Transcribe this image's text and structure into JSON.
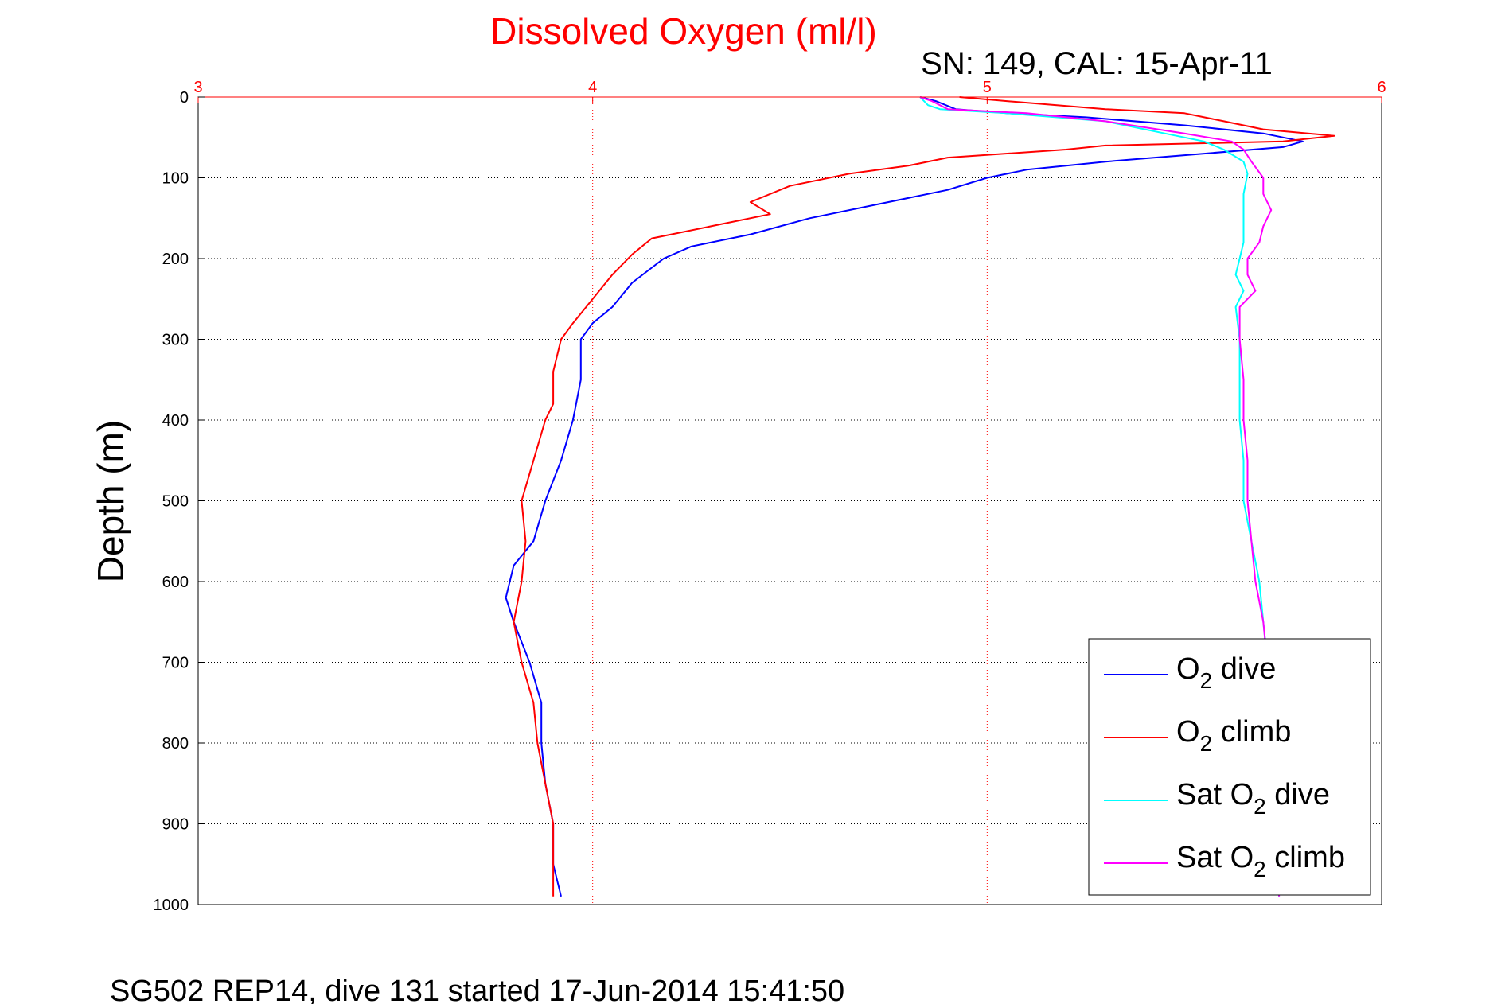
{
  "figure": {
    "title": "Dissolved Oxygen (ml/l)",
    "subtitle": "SN: 149, CAL: 15-Apr-11",
    "footer": "SG502 REP14, dive 131 started 17-Jun-2014 15:41:50"
  },
  "chart_data": {
    "type": "line",
    "title": "Dissolved Oxygen (ml/l)",
    "ylabel": "Depth (m)",
    "xlabel": "",
    "xlim": [
      3,
      6
    ],
    "ylim": [
      0,
      1000
    ],
    "y_reversed": true,
    "x_axis_position": "top",
    "xticks": [
      3,
      4,
      5,
      6
    ],
    "yticks": [
      0,
      100,
      200,
      300,
      400,
      500,
      600,
      700,
      800,
      900,
      1000
    ],
    "grid": true,
    "legend_position": "bottom-right",
    "colors": {
      "title": "#ff0000",
      "x_ticks": "#ff0000",
      "x_grid": "#ff0000",
      "y_grid": "#000000"
    },
    "series": [
      {
        "name": "O2 dive",
        "legend_main": "O",
        "legend_sub": "2",
        "legend_rest": " dive",
        "color": "#0000ff",
        "points": [
          [
            4.83,
            0
          ],
          [
            4.87,
            5
          ],
          [
            4.92,
            15
          ],
          [
            5.05,
            20
          ],
          [
            5.25,
            25
          ],
          [
            5.5,
            35
          ],
          [
            5.7,
            45
          ],
          [
            5.8,
            55
          ],
          [
            5.75,
            62
          ],
          [
            5.55,
            70
          ],
          [
            5.3,
            80
          ],
          [
            5.1,
            90
          ],
          [
            5.0,
            100
          ],
          [
            4.9,
            115
          ],
          [
            4.75,
            130
          ],
          [
            4.55,
            150
          ],
          [
            4.4,
            170
          ],
          [
            4.25,
            185
          ],
          [
            4.18,
            200
          ],
          [
            4.1,
            230
          ],
          [
            4.05,
            260
          ],
          [
            4.0,
            280
          ],
          [
            3.97,
            300
          ],
          [
            3.97,
            350
          ],
          [
            3.95,
            400
          ],
          [
            3.92,
            450
          ],
          [
            3.88,
            500
          ],
          [
            3.85,
            550
          ],
          [
            3.8,
            580
          ],
          [
            3.78,
            620
          ],
          [
            3.8,
            650
          ],
          [
            3.84,
            700
          ],
          [
            3.87,
            750
          ],
          [
            3.87,
            800
          ],
          [
            3.88,
            850
          ],
          [
            3.9,
            900
          ],
          [
            3.9,
            950
          ],
          [
            3.92,
            990
          ]
        ]
      },
      {
        "name": "O2 climb",
        "legend_main": "O",
        "legend_sub": "2",
        "legend_rest": " climb",
        "color": "#ff0000",
        "points": [
          [
            4.93,
            0
          ],
          [
            5.05,
            5
          ],
          [
            5.3,
            15
          ],
          [
            5.5,
            20
          ],
          [
            5.6,
            30
          ],
          [
            5.7,
            40
          ],
          [
            5.88,
            48
          ],
          [
            5.75,
            55
          ],
          [
            5.3,
            60
          ],
          [
            5.2,
            65
          ],
          [
            4.9,
            75
          ],
          [
            4.8,
            85
          ],
          [
            4.65,
            95
          ],
          [
            4.5,
            110
          ],
          [
            4.4,
            130
          ],
          [
            4.45,
            145
          ],
          [
            4.3,
            160
          ],
          [
            4.15,
            175
          ],
          [
            4.1,
            195
          ],
          [
            4.05,
            220
          ],
          [
            4.0,
            250
          ],
          [
            3.95,
            280
          ],
          [
            3.92,
            300
          ],
          [
            3.9,
            340
          ],
          [
            3.9,
            380
          ],
          [
            3.88,
            400
          ],
          [
            3.85,
            450
          ],
          [
            3.82,
            500
          ],
          [
            3.83,
            550
          ],
          [
            3.82,
            600
          ],
          [
            3.8,
            650
          ],
          [
            3.82,
            700
          ],
          [
            3.85,
            750
          ],
          [
            3.86,
            800
          ],
          [
            3.88,
            850
          ],
          [
            3.9,
            900
          ],
          [
            3.9,
            950
          ],
          [
            3.9,
            990
          ]
        ]
      },
      {
        "name": "Sat O2 dive",
        "legend_main": "Sat O",
        "legend_sub": "2",
        "legend_rest": " dive",
        "color": "#00ffff",
        "points": [
          [
            4.83,
            0
          ],
          [
            4.85,
            10
          ],
          [
            4.88,
            15
          ],
          [
            5.05,
            20
          ],
          [
            5.3,
            30
          ],
          [
            5.45,
            45
          ],
          [
            5.55,
            55
          ],
          [
            5.6,
            65
          ],
          [
            5.65,
            80
          ],
          [
            5.66,
            95
          ],
          [
            5.65,
            120
          ],
          [
            5.65,
            150
          ],
          [
            5.65,
            180
          ],
          [
            5.64,
            200
          ],
          [
            5.63,
            220
          ],
          [
            5.65,
            240
          ],
          [
            5.63,
            260
          ],
          [
            5.64,
            300
          ],
          [
            5.64,
            350
          ],
          [
            5.64,
            400
          ],
          [
            5.65,
            450
          ],
          [
            5.65,
            500
          ],
          [
            5.67,
            550
          ],
          [
            5.69,
            600
          ],
          [
            5.7,
            650
          ],
          [
            5.71,
            700
          ],
          [
            5.72,
            750
          ],
          [
            5.72,
            800
          ],
          [
            5.72,
            850
          ],
          [
            5.73,
            900
          ],
          [
            5.73,
            950
          ],
          [
            5.74,
            990
          ]
        ]
      },
      {
        "name": "Sat O2 climb",
        "legend_main": "Sat O",
        "legend_sub": "2",
        "legend_rest": " climb",
        "color": "#ff00ff",
        "points": [
          [
            4.83,
            0
          ],
          [
            4.86,
            5
          ],
          [
            4.9,
            15
          ],
          [
            5.1,
            20
          ],
          [
            5.3,
            30
          ],
          [
            5.5,
            45
          ],
          [
            5.62,
            55
          ],
          [
            5.65,
            65
          ],
          [
            5.67,
            80
          ],
          [
            5.7,
            100
          ],
          [
            5.7,
            120
          ],
          [
            5.72,
            140
          ],
          [
            5.7,
            160
          ],
          [
            5.69,
            180
          ],
          [
            5.66,
            200
          ],
          [
            5.66,
            220
          ],
          [
            5.68,
            240
          ],
          [
            5.64,
            260
          ],
          [
            5.64,
            300
          ],
          [
            5.65,
            350
          ],
          [
            5.65,
            400
          ],
          [
            5.66,
            450
          ],
          [
            5.66,
            500
          ],
          [
            5.67,
            550
          ],
          [
            5.68,
            600
          ],
          [
            5.7,
            650
          ],
          [
            5.71,
            700
          ],
          [
            5.72,
            750
          ],
          [
            5.72,
            800
          ],
          [
            5.73,
            850
          ],
          [
            5.73,
            900
          ],
          [
            5.74,
            950
          ],
          [
            5.74,
            990
          ]
        ]
      }
    ]
  }
}
